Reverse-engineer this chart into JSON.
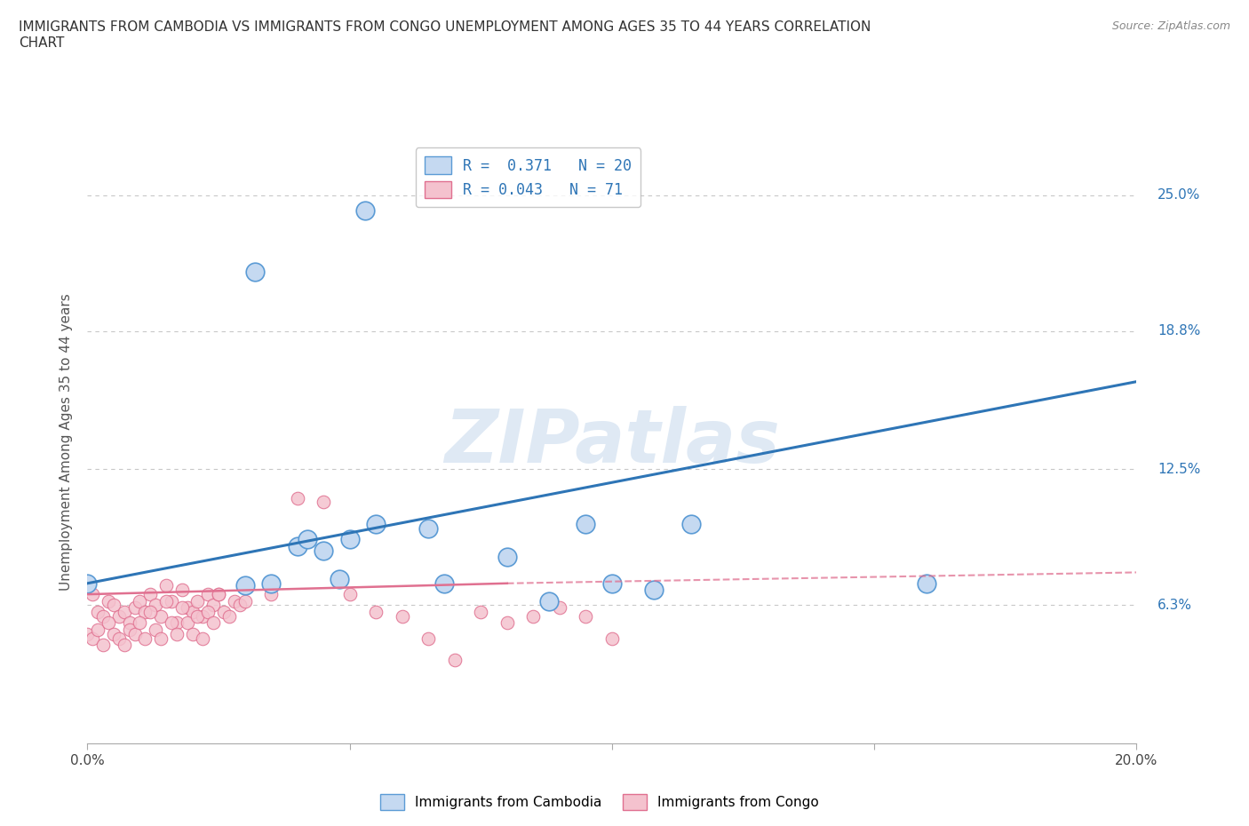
{
  "title": "IMMIGRANTS FROM CAMBODIA VS IMMIGRANTS FROM CONGO UNEMPLOYMENT AMONG AGES 35 TO 44 YEARS CORRELATION\nCHART",
  "source": "Source: ZipAtlas.com",
  "ylabel": "Unemployment Among Ages 35 to 44 years",
  "xlim": [
    0.0,
    0.2
  ],
  "ylim": [
    0.0,
    0.275
  ],
  "yticks": [
    0.063,
    0.125,
    0.188,
    0.25
  ],
  "ytick_labels": [
    "6.3%",
    "12.5%",
    "18.8%",
    "25.0%"
  ],
  "xticks": [
    0.0,
    0.05,
    0.1,
    0.15,
    0.2
  ],
  "xtick_labels": [
    "0.0%",
    "",
    "",
    "",
    "20.0%"
  ],
  "watermark": "ZIPatlas",
  "background_color": "#ffffff",
  "grid_color": "#c8c8c8",
  "cambodia_color": "#c5d9f1",
  "cambodia_edge_color": "#5b9bd5",
  "cambodia_R": 0.371,
  "cambodia_N": 20,
  "cambodia_line_color": "#2e75b6",
  "cambodia_x": [
    0.0,
    0.03,
    0.032,
    0.035,
    0.04,
    0.042,
    0.045,
    0.048,
    0.05,
    0.055,
    0.065,
    0.068,
    0.08,
    0.088,
    0.095,
    0.1,
    0.108,
    0.115,
    0.16,
    0.053
  ],
  "cambodia_y": [
    0.073,
    0.072,
    0.215,
    0.073,
    0.09,
    0.093,
    0.088,
    0.075,
    0.093,
    0.1,
    0.098,
    0.073,
    0.085,
    0.065,
    0.1,
    0.073,
    0.07,
    0.1,
    0.073,
    0.243
  ],
  "congo_color": "#f4c2ce",
  "congo_edge_color": "#e07090",
  "congo_R": 0.043,
  "congo_N": 71,
  "congo_line_color": "#e07090",
  "congo_x": [
    0.0,
    0.001,
    0.002,
    0.003,
    0.004,
    0.005,
    0.006,
    0.007,
    0.008,
    0.009,
    0.01,
    0.011,
    0.012,
    0.013,
    0.014,
    0.015,
    0.016,
    0.017,
    0.018,
    0.019,
    0.02,
    0.021,
    0.022,
    0.023,
    0.024,
    0.025,
    0.026,
    0.027,
    0.028,
    0.029,
    0.0,
    0.001,
    0.002,
    0.003,
    0.004,
    0.005,
    0.006,
    0.007,
    0.008,
    0.009,
    0.01,
    0.011,
    0.012,
    0.013,
    0.014,
    0.015,
    0.016,
    0.017,
    0.018,
    0.019,
    0.02,
    0.021,
    0.022,
    0.023,
    0.024,
    0.025,
    0.03,
    0.035,
    0.04,
    0.045,
    0.05,
    0.055,
    0.06,
    0.065,
    0.07,
    0.075,
    0.08,
    0.085,
    0.09,
    0.095,
    0.1
  ],
  "congo_y": [
    0.072,
    0.068,
    0.06,
    0.058,
    0.065,
    0.063,
    0.058,
    0.06,
    0.055,
    0.062,
    0.065,
    0.06,
    0.068,
    0.063,
    0.058,
    0.072,
    0.065,
    0.055,
    0.07,
    0.062,
    0.06,
    0.065,
    0.058,
    0.068,
    0.063,
    0.068,
    0.06,
    0.058,
    0.065,
    0.063,
    0.05,
    0.048,
    0.052,
    0.045,
    0.055,
    0.05,
    0.048,
    0.045,
    0.052,
    0.05,
    0.055,
    0.048,
    0.06,
    0.052,
    0.048,
    0.065,
    0.055,
    0.05,
    0.062,
    0.055,
    0.05,
    0.058,
    0.048,
    0.06,
    0.055,
    0.068,
    0.065,
    0.068,
    0.112,
    0.11,
    0.068,
    0.06,
    0.058,
    0.048,
    0.038,
    0.06,
    0.055,
    0.058,
    0.062,
    0.058,
    0.048
  ]
}
